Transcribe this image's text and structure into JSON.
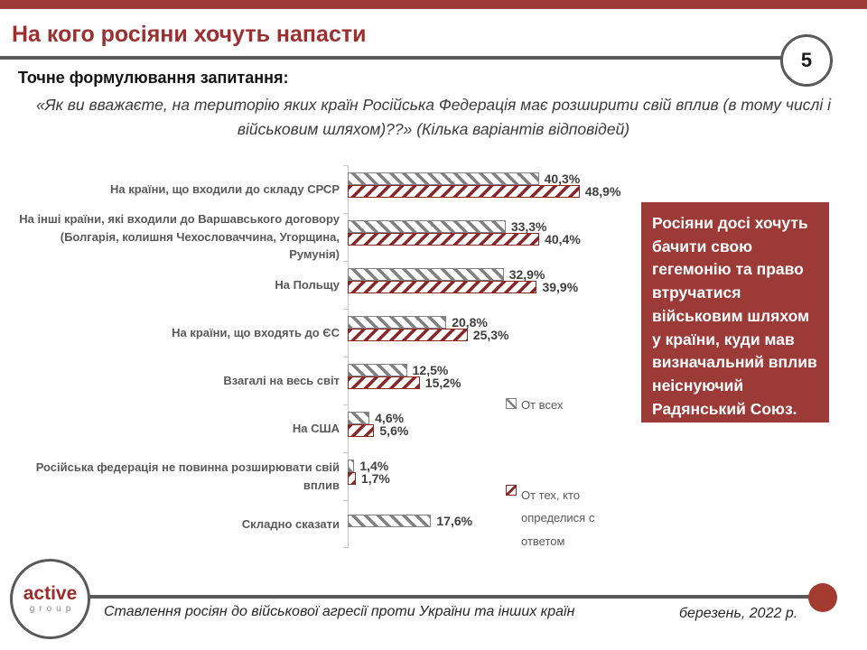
{
  "slide": {
    "title": "На кого росіяни хочуть напасти",
    "page_number": "5",
    "question_label": "Точне формулювання запитання:",
    "question_quote": "«Як ви вважаєте, на територію яких країн Російська Федерація має розширити свій вплив (в тому числі і військовим шляхом)??» (Кілька варіантів відповідей)",
    "callout_text": "Росіяни досі хочуть бачити свою гегемонію та право втручатися військовим шляхом у країни, куди мав визначальний вплив неіснуючий Радянський Союз.",
    "footer": {
      "logo_line1": "active",
      "logo_line2": "group",
      "caption": "Ставлення росіян до військової агресії проти України та інших країн",
      "date": "березень, 2022 р."
    },
    "colors": {
      "accent_red": "#9C3A37",
      "hatch_red": "#8B2626",
      "hatch_gray": "#808080",
      "title_red": "#9C2F2F",
      "rule_gray": "#595959"
    }
  },
  "chart_data": {
    "type": "bar",
    "orientation": "horizontal",
    "unit": "%",
    "xlim": [
      0,
      55
    ],
    "grid": false,
    "legend_position": "right",
    "categories": [
      "На країни, що входили до складу СРСР",
      "На інші країни, які входили до Варшавського договору (Болгарія, колишня Чехословаччина, Угорщина, Румунія)",
      "На Польщу",
      "На країни, що входять до ЄС",
      "Взагалі на весь світ",
      "На США",
      "Російська федерація не повинна розширювати свій вплив",
      "Складно сказати"
    ],
    "series": [
      {
        "name": "От всех",
        "values": [
          40.3,
          33.3,
          32.9,
          20.8,
          12.5,
          4.6,
          1.4,
          17.6
        ],
        "labels": [
          "40,3%",
          "33,3%",
          "32,9%",
          "20,8%",
          "12,5%",
          "4,6%",
          "1,4%",
          "17,6%"
        ]
      },
      {
        "name": "От тех, кто определися с ответом",
        "values": [
          48.9,
          40.4,
          39.9,
          25.3,
          15.2,
          5.6,
          1.7,
          null
        ],
        "labels": [
          "48,9%",
          "40,4%",
          "39,9%",
          "25,3%",
          "15,2%",
          "5,6%",
          "1,7%",
          ""
        ]
      }
    ]
  }
}
